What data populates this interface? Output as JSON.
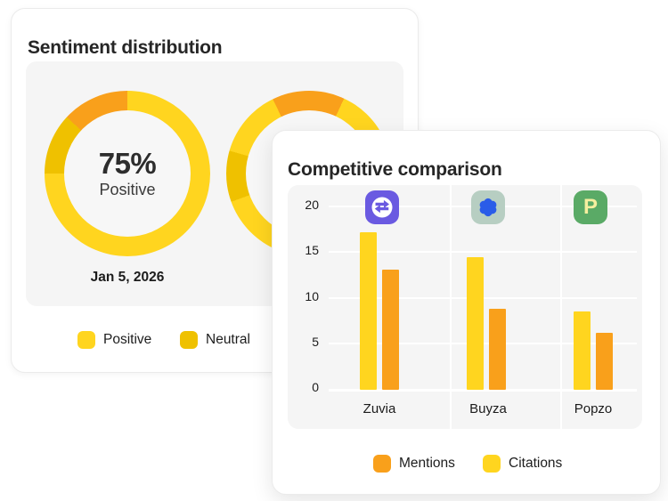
{
  "sentiment_card": {
    "title": "Sentiment distribution"
  },
  "competitive_card": {
    "title": "Competitive comparison"
  },
  "chart_data": [
    {
      "type": "donut",
      "title": "Sentiment distribution",
      "center_value": "75%",
      "center_label": "Positive",
      "caption": "Jan 5, 2026",
      "slices": [
        {
          "label": "Positive",
          "value": 75,
          "color": "#FFD51F"
        },
        {
          "label": "Neutral",
          "value": 12,
          "color": "#EFC100"
        },
        {
          "label": null,
          "value": 13,
          "color": "#F9A01B"
        }
      ],
      "legend": [
        {
          "label": "Positive",
          "color": "#FFD51F"
        },
        {
          "label": "Neutral",
          "color": "#EFC100"
        }
      ],
      "render": {
        "donut1_segments": [
          {
            "color": "#FFD51F",
            "from": 0,
            "to": 270
          },
          {
            "color": "#EFC100",
            "from": 270,
            "to": 313
          },
          {
            "color": "#F9A01B",
            "from": 313,
            "to": 360
          }
        ],
        "donut2_segments": [
          {
            "color": "#F9A01B",
            "from": 0,
            "to": 25
          },
          {
            "color": "#FFD51F",
            "from": 25,
            "to": 250
          },
          {
            "color": "#EFC100",
            "from": 250,
            "to": 286
          },
          {
            "color": "#FFD51F",
            "from": 286,
            "to": 334
          },
          {
            "color": "#F9A01B",
            "from": 334,
            "to": 360
          }
        ]
      }
    },
    {
      "type": "bar",
      "title": "Competitive comparison",
      "categories": [
        "Zuvia",
        "Buyza",
        "Popzo"
      ],
      "series": [
        {
          "name": "Citations",
          "color": "#FFD51F",
          "values": [
            17.3,
            14.5,
            8.6
          ]
        },
        {
          "name": "Mentions",
          "color": "#F9A01B",
          "values": [
            13.2,
            8.9,
            6.2
          ]
        }
      ],
      "ylim": [
        0,
        20
      ],
      "yticks": [
        20,
        15,
        10,
        5,
        0
      ],
      "legend": [
        {
          "label": "Mentions",
          "color": "#F9A01B"
        },
        {
          "label": "Citations",
          "color": "#FFD51F"
        }
      ],
      "brand_icons": [
        {
          "brand": "Zuvia",
          "bg": "#6A5AE1",
          "glyph": "swap-arrows",
          "glyph_color": "#FFFFFF"
        },
        {
          "brand": "Buyza",
          "bg": "#B7CEC2",
          "glyph": "blob-flower",
          "glyph_color": "#2A5CE8"
        },
        {
          "brand": "Popzo",
          "bg": "#5AAA66",
          "glyph": "letter",
          "glyph_letter": "P",
          "letter_color": "#F6EF9F"
        }
      ]
    }
  ]
}
